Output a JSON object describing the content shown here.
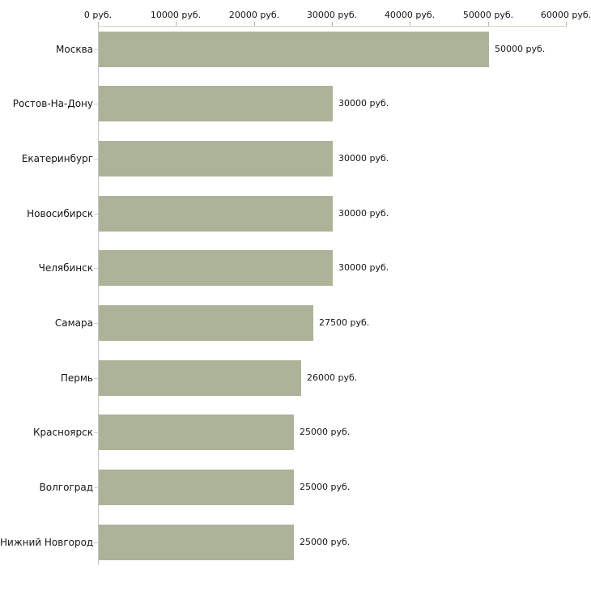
{
  "chart_data": {
    "type": "bar",
    "orientation": "horizontal",
    "title": "",
    "categories": [
      "Москва",
      "Ростов-На-Дону",
      "Екатеринбург",
      "Новосибирск",
      "Челябинск",
      "Самара",
      "Пермь",
      "Красноярск",
      "Волгоград",
      "Нижний Новгород"
    ],
    "values": [
      50000,
      30000,
      30000,
      30000,
      30000,
      27500,
      26000,
      25000,
      25000,
      25000
    ],
    "value_labels": [
      "50000 руб.",
      "30000 руб.",
      "30000 руб.",
      "30000 руб.",
      "30000 руб.",
      "27500 руб.",
      "26000 руб.",
      "25000 руб.",
      "25000 руб.",
      "25000 руб."
    ],
    "unit": "руб.",
    "xlim": [
      0,
      60000
    ],
    "x_ticks": [
      0,
      10000,
      20000,
      30000,
      40000,
      50000,
      60000
    ],
    "x_tick_labels": [
      "0 руб.",
      "10000 руб.",
      "20000 руб.",
      "30000 руб.",
      "40000 руб.",
      "50000 руб.",
      "60000 руб."
    ],
    "grid": false,
    "legend": "none",
    "axis_position": "top",
    "colors": {
      "bar": "#adb398",
      "text": "#151515",
      "x_axis_line": "#d9d5c0",
      "y_axis_line": "#c6c5c2",
      "x_tick": "#b9b6a0",
      "y_tick": "#d2ceba"
    }
  }
}
